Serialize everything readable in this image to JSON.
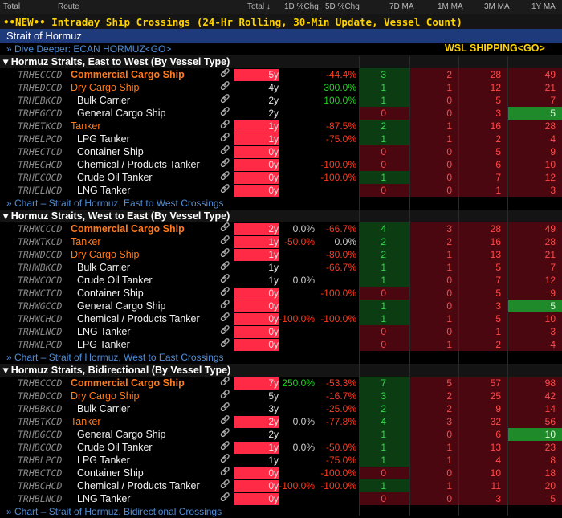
{
  "header": {
    "cols": [
      "Total",
      "Route",
      "Total",
      "1D %Chg",
      "5D %Chg",
      "7D MA",
      "1M MA",
      "3M MA",
      "1Y MA"
    ],
    "total_sort_arrow": "↓"
  },
  "banner": "••NEW•• Intraday Ship Crossings (24-Hr Rolling, 30-Min Update, Vessel Count)",
  "strait_title": "Strait of Hormuz",
  "dive_deeper": "» Dive Deeper: ECAN HORMUZ<GO>",
  "wsl": "WSL SHIPPING<GO>",
  "sections": [
    {
      "title": "▾ Hormuz Straits, East to West (By Vessel Type)",
      "chart_link": "» Chart – Strait of Hormuz, East to West Crossings",
      "rows": [
        {
          "ticker": "TRHECCCD",
          "name": "Commercial Cargo Ship",
          "lvl": 0,
          "hl": true,
          "total": "5y",
          "d1": "",
          "d5": "-44.4%",
          "g": [
            "3",
            "2",
            "28",
            "49"
          ]
        },
        {
          "ticker": "TRHEDCCD",
          "name": "Dry Cargo Ship",
          "lvl": 0,
          "hl": false,
          "total": "4y",
          "d1": "",
          "d5": "300.0%",
          "g": [
            "1",
            "1",
            "12",
            "21"
          ]
        },
        {
          "ticker": "TRHEBKCD",
          "name": "Bulk Carrier",
          "lvl": 1,
          "hl": false,
          "total": "2y",
          "d1": "",
          "d5": "100.0%",
          "g": [
            "1",
            "0",
            "5",
            "7"
          ]
        },
        {
          "ticker": "TRHEGCCD",
          "name": "General Cargo Ship",
          "lvl": 1,
          "hl": false,
          "total": "2y",
          "d1": "",
          "d5": "",
          "g": [
            "0",
            "0",
            "3",
            "5"
          ]
        },
        {
          "ticker": "TRHETKCD",
          "name": "Tanker",
          "lvl": 0,
          "hl": false,
          "total": "1y",
          "d1": "",
          "d5": "-87.5%",
          "g": [
            "2",
            "1",
            "16",
            "28"
          ]
        },
        {
          "ticker": "TRHELPCD",
          "name": "LPG Tanker",
          "lvl": 1,
          "hl": false,
          "total": "1y",
          "d1": "",
          "d5": "-75.0%",
          "g": [
            "1",
            "1",
            "2",
            "4"
          ]
        },
        {
          "ticker": "TRHECTCD",
          "name": "Container Ship",
          "lvl": 1,
          "hl": false,
          "total": "0y",
          "d1": "",
          "d5": "",
          "g": [
            "0",
            "0",
            "5",
            "9"
          ]
        },
        {
          "ticker": "TRHECHCD",
          "name": "Chemical / Products Tanker",
          "lvl": 1,
          "hl": false,
          "total": "0y",
          "d1": "",
          "d5": "-100.0%",
          "g": [
            "0",
            "0",
            "6",
            "10"
          ]
        },
        {
          "ticker": "TRHECOCD",
          "name": "Crude Oil Tanker",
          "lvl": 1,
          "hl": false,
          "total": "0y",
          "d1": "",
          "d5": "-100.0%",
          "g": [
            "1",
            "0",
            "7",
            "12"
          ]
        },
        {
          "ticker": "TRHELNCD",
          "name": "LNG Tanker",
          "lvl": 1,
          "hl": false,
          "total": "0y",
          "d1": "",
          "d5": "",
          "g": [
            "0",
            "0",
            "1",
            "3"
          ]
        }
      ]
    },
    {
      "title": "▾ Hormuz Straits, West to East (By Vessel Type)",
      "chart_link": "» Chart – Strait of Hormuz, West to East Crossings",
      "rows": [
        {
          "ticker": "TRHWCCCD",
          "name": "Commercial Cargo Ship",
          "lvl": 0,
          "hl": true,
          "total": "2y",
          "d1": "0.0%",
          "d5": "-66.7%",
          "g": [
            "4",
            "3",
            "28",
            "49"
          ]
        },
        {
          "ticker": "TRHWTKCD",
          "name": "Tanker",
          "lvl": 0,
          "hl": false,
          "total": "1y",
          "d1": "-50.0%",
          "d5": "0.0%",
          "g": [
            "2",
            "2",
            "16",
            "28"
          ]
        },
        {
          "ticker": "TRHWDCCD",
          "name": "Dry Cargo Ship",
          "lvl": 0,
          "hl": false,
          "total": "1y",
          "d1": "",
          "d5": "-80.0%",
          "g": [
            "2",
            "1",
            "13",
            "21"
          ]
        },
        {
          "ticker": "TRHWBKCD",
          "name": "Bulk Carrier",
          "lvl": 1,
          "hl": false,
          "total": "1y",
          "d1": "",
          "d5": "-66.7%",
          "g": [
            "1",
            "1",
            "5",
            "7"
          ]
        },
        {
          "ticker": "TRHWCOCD",
          "name": "Crude Oil Tanker",
          "lvl": 1,
          "hl": false,
          "total": "1y",
          "d1": "0.0%",
          "d5": "",
          "g": [
            "1",
            "0",
            "7",
            "12"
          ]
        },
        {
          "ticker": "TRHWCTCD",
          "name": "Container Ship",
          "lvl": 1,
          "hl": false,
          "total": "0y",
          "d1": "",
          "d5": "-100.0%",
          "g": [
            "0",
            "0",
            "5",
            "9"
          ]
        },
        {
          "ticker": "TRHWGCCD",
          "name": "General Cargo Ship",
          "lvl": 1,
          "hl": false,
          "total": "0y",
          "d1": "",
          "d5": "",
          "g": [
            "1",
            "0",
            "3",
            "5"
          ]
        },
        {
          "ticker": "TRHWCHCD",
          "name": "Chemical / Products Tanker",
          "lvl": 1,
          "hl": false,
          "total": "0y",
          "d1": "-100.0%",
          "d5": "-100.0%",
          "g": [
            "1",
            "1",
            "5",
            "10"
          ]
        },
        {
          "ticker": "TRHWLNCD",
          "name": "LNG Tanker",
          "lvl": 1,
          "hl": false,
          "total": "0y",
          "d1": "",
          "d5": "",
          "g": [
            "0",
            "0",
            "1",
            "3"
          ]
        },
        {
          "ticker": "TRHWLPCD",
          "name": "LPG Tanker",
          "lvl": 1,
          "hl": false,
          "total": "0y",
          "d1": "",
          "d5": "",
          "g": [
            "0",
            "1",
            "2",
            "4"
          ]
        }
      ]
    },
    {
      "title": "▾ Hormuz Straits, Bidirectional (By Vessel Type)",
      "chart_link": "» Chart – Strait of Hormuz, Bidirectional Crossings",
      "rows": [
        {
          "ticker": "TRHBCCCD",
          "name": "Commercial Cargo Ship",
          "lvl": 0,
          "hl": true,
          "total": "7y",
          "d1": "250.0%",
          "d5": "-53.3%",
          "g": [
            "7",
            "5",
            "57",
            "98"
          ]
        },
        {
          "ticker": "TRHBDCCD",
          "name": "Dry Cargo Ship",
          "lvl": 0,
          "hl": false,
          "total": "5y",
          "d1": "",
          "d5": "-16.7%",
          "g": [
            "3",
            "2",
            "25",
            "42"
          ]
        },
        {
          "ticker": "TRHBBKCD",
          "name": "Bulk Carrier",
          "lvl": 1,
          "hl": false,
          "total": "3y",
          "d1": "",
          "d5": "-25.0%",
          "g": [
            "2",
            "2",
            "9",
            "14"
          ]
        },
        {
          "ticker": "TRHBTKCD",
          "name": "Tanker",
          "lvl": 0,
          "hl": false,
          "total": "2y",
          "d1": "0.0%",
          "d5": "-77.8%",
          "g": [
            "4",
            "3",
            "32",
            "56"
          ]
        },
        {
          "ticker": "TRHBGCCD",
          "name": "General Cargo Ship",
          "lvl": 1,
          "hl": false,
          "total": "2y",
          "d1": "",
          "d5": "",
          "g": [
            "1",
            "0",
            "6",
            "10"
          ]
        },
        {
          "ticker": "TRHBCOCD",
          "name": "Crude Oil Tanker",
          "lvl": 1,
          "hl": false,
          "total": "1y",
          "d1": "0.0%",
          "d5": "-50.0%",
          "g": [
            "1",
            "1",
            "13",
            "23"
          ]
        },
        {
          "ticker": "TRHBLPCD",
          "name": "LPG Tanker",
          "lvl": 1,
          "hl": false,
          "total": "1y",
          "d1": "",
          "d5": "-75.0%",
          "g": [
            "1",
            "1",
            "4",
            "8"
          ]
        },
        {
          "ticker": "TRHBCTCD",
          "name": "Container Ship",
          "lvl": 1,
          "hl": false,
          "total": "0y",
          "d1": "",
          "d5": "-100.0%",
          "g": [
            "0",
            "0",
            "10",
            "18"
          ]
        },
        {
          "ticker": "TRHBCHCD",
          "name": "Chemical / Products Tanker",
          "lvl": 1,
          "hl": false,
          "total": "0y",
          "d1": "-100.0%",
          "d5": "-100.0%",
          "g": [
            "1",
            "1",
            "11",
            "20"
          ]
        },
        {
          "ticker": "TRHBLNCD",
          "name": "LNG Tanker",
          "lvl": 1,
          "hl": false,
          "total": "0y",
          "d1": "",
          "d5": "",
          "g": [
            "0",
            "0",
            "3",
            "5"
          ]
        }
      ]
    }
  ],
  "colors": {
    "banner_text": "#ffd200",
    "strait_bar": "#1e3a7a",
    "link": "#4f8ed9",
    "orange": "#ff7a1a",
    "red_box": "#ff2b46",
    "pos": "#22d422",
    "neg": "#ff3b1f",
    "grid_green": "#0c3d12",
    "grid_red": "#4a0710",
    "grid_bright_green": "#1f8a2a",
    "cell_green_text": "#2ee04a",
    "cell_red_text": "#ff4a4a"
  },
  "icons": {
    "link": "chain-link-icon",
    "collapse": "triangle-down-icon"
  }
}
